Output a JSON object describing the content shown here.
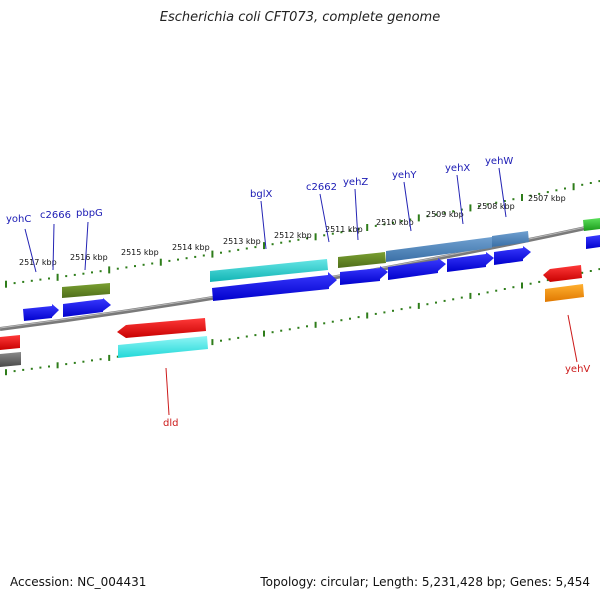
{
  "title": "Escherichia coli CFT073, complete genome",
  "footer": {
    "accession": "Accession: NC_004431",
    "summary": "Topology: circular; Length: 5,231,428 bp; Genes: 5,454"
  },
  "colors": {
    "background": "#ffffff",
    "backbone": "#808080",
    "tick": "#2e7d1a",
    "label_plus": "#1a1ab4",
    "label_minus": "#cc1a1a"
  },
  "kbp_labels": [
    "2517 kbp",
    "2516 kbp",
    "2515 kbp",
    "2514 kbp",
    "2513 kbp",
    "2512 kbp",
    "2511 kbp",
    "2510 kbp",
    "2509 kbp",
    "2508 kbp",
    "2507 kbp"
  ],
  "gene_labels": {
    "yohC": "yohC",
    "c2666": "c2666",
    "pbpG": "pbpG",
    "bglX": "bglX",
    "c2662": "c2662",
    "yehZ": "yehZ",
    "yehY": "yehY",
    "yehX": "yehX",
    "yehW": "yehW",
    "dld": "dld",
    "yehV": "yehV"
  }
}
